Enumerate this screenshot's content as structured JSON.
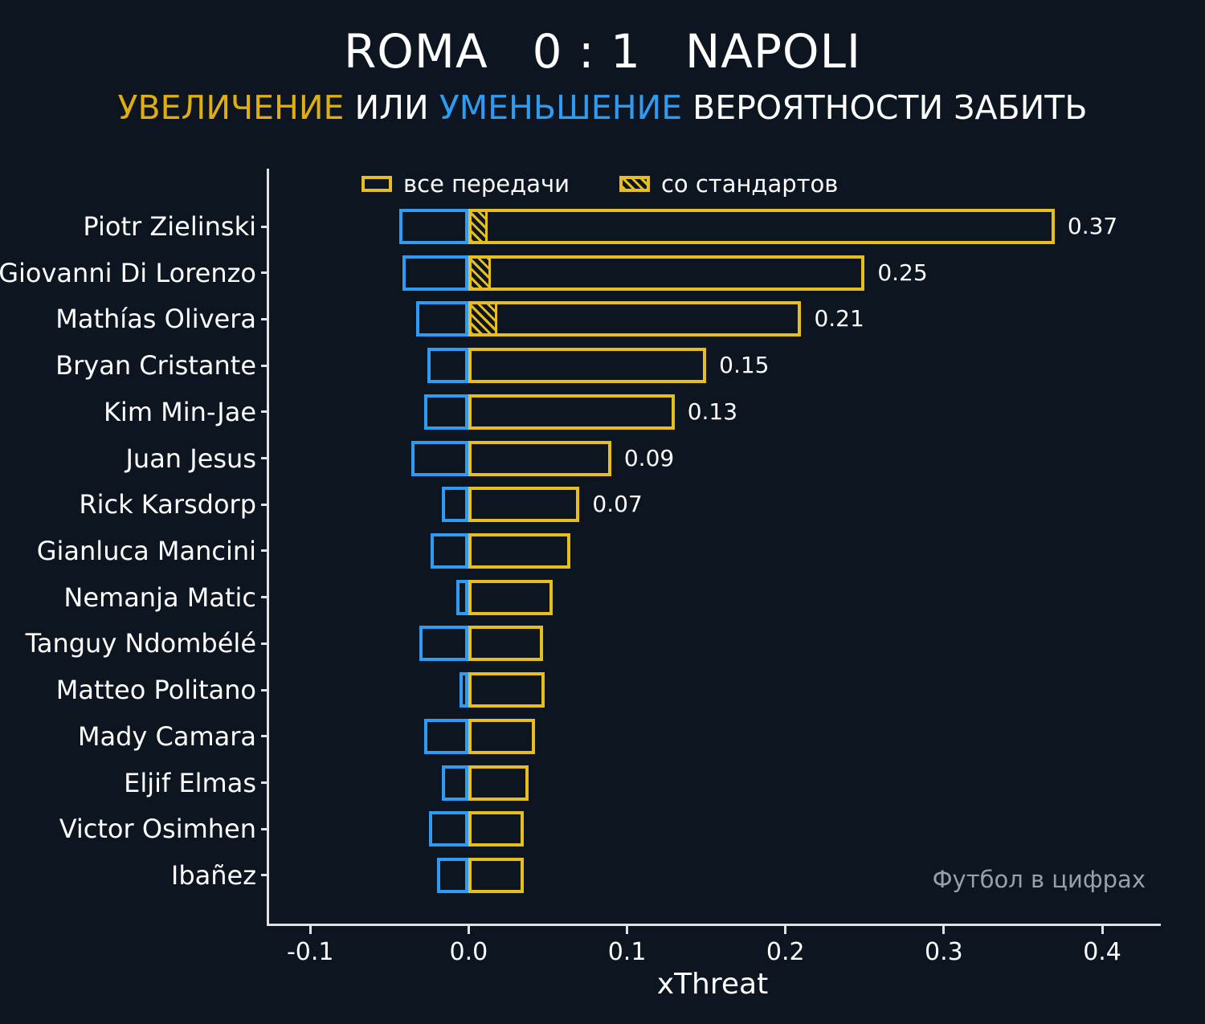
{
  "header": {
    "title_home": "ROMA",
    "title_score": "0 : 1",
    "title_away": "NAPOLI",
    "subtitle": [
      {
        "text": "УВЕЛИЧЕНИЕ",
        "color": "#e0ae0e"
      },
      {
        "text": " ИЛИ ",
        "color": "#ffffff"
      },
      {
        "text": "УМЕНЬШЕНИЕ",
        "color": "#2f9cf4"
      },
      {
        "text": " ВЕРОЯТНОСТИ ЗАБИТЬ",
        "color": "#ffffff"
      }
    ]
  },
  "legend": [
    {
      "label": "все передачи",
      "swatch": "outline"
    },
    {
      "label": "со стандартов",
      "swatch": "hatched"
    }
  ],
  "watermark": "Футбол в цифрах",
  "colors": {
    "background": "#0d1620",
    "positive": "#e6bf1e",
    "negative": "#2f9cf4",
    "axis": "#dfe3e8",
    "text": "#ffffff",
    "watermark": "#97a1ab"
  },
  "chart_data": {
    "type": "bar",
    "orientation": "horizontal",
    "title": "ROMA 0 : 1 NAPOLI",
    "subtitle": "УВЕЛИЧЕНИЕ ИЛИ УМЕНЬШЕНИЕ ВЕРОЯТНОСТИ ЗАБИТЬ",
    "xlabel": "xThreat",
    "xlim": [
      -0.126,
      0.437
    ],
    "xticks": [
      "-0.1",
      "0.0",
      "0.1",
      "0.2",
      "0.3",
      "0.4"
    ],
    "grid": false,
    "legend_position": "top-inside",
    "categories": [
      "Piotr Zielinski",
      "Giovanni Di Lorenzo",
      "Mathías Olivera",
      "Bryan Cristante",
      "Kim Min-Jae",
      "Juan Jesus",
      "Rick Karsdorp",
      "Gianluca Mancini",
      "Nemanja Matic",
      "Tanguy Ndombélé",
      "Matteo Politano",
      "Mady Camara",
      "Eljif Elmas",
      "Victor Osimhen",
      "Ibañez"
    ],
    "series": [
      {
        "name": "все передачи (увеличение)",
        "color": "#e6bf1e",
        "values": [
          0.37,
          0.25,
          0.21,
          0.15,
          0.13,
          0.09,
          0.07,
          0.064,
          0.053,
          0.047,
          0.048,
          0.042,
          0.038,
          0.035,
          0.035
        ]
      },
      {
        "name": "уменьшение",
        "color": "#2f9cf4",
        "values": [
          -0.044,
          -0.042,
          -0.033,
          -0.026,
          -0.028,
          -0.036,
          -0.017,
          -0.024,
          -0.008,
          -0.031,
          -0.006,
          -0.028,
          -0.017,
          -0.025,
          -0.02
        ]
      },
      {
        "name": "со стандартов",
        "color": "#e6bf1e",
        "hatched": true,
        "values": [
          0.012,
          0.014,
          0.018,
          0,
          0,
          0,
          0,
          0,
          0,
          0,
          0,
          0,
          0,
          0,
          0
        ]
      }
    ],
    "value_labels": [
      "0.37",
      "0.25",
      "0.21",
      "0.15",
      "0.13",
      "0.09",
      "0.07",
      "",
      "",
      "",
      "",
      "",
      "",
      "",
      ""
    ]
  }
}
